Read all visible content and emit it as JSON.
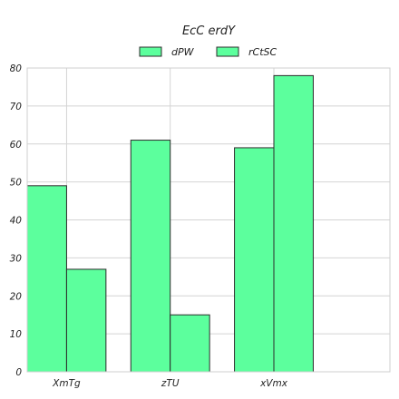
{
  "chart_data": {
    "type": "bar",
    "title": "EcC erdY",
    "xlabel": "",
    "ylabel": "",
    "categories": [
      "XmTg",
      "zTU",
      "xVmx"
    ],
    "series": [
      {
        "name": "dPW",
        "values": [
          49,
          61,
          59
        ],
        "color": "#5cff9d"
      },
      {
        "name": "rCtSC",
        "values": [
          27,
          15,
          78
        ],
        "color": "#5cff9d"
      }
    ],
    "ylim": [
      0,
      80
    ],
    "yticks": [
      0,
      10,
      20,
      30,
      40,
      50,
      60,
      70,
      80
    ],
    "grid": true,
    "legend_position": "top-center"
  }
}
